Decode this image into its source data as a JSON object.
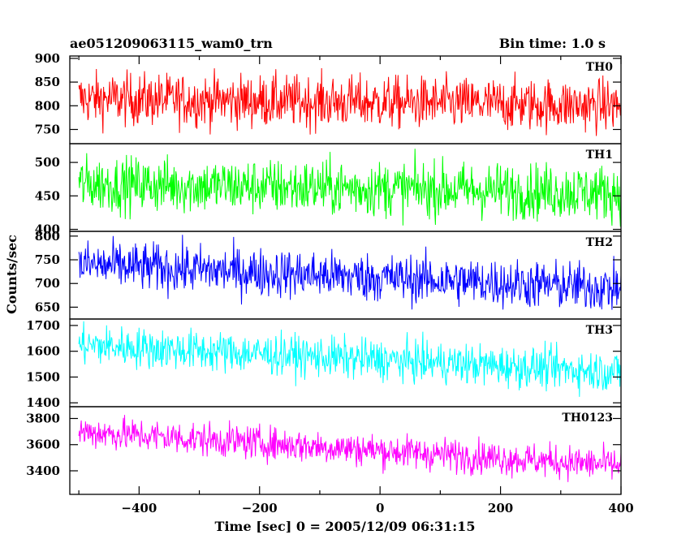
{
  "header": {
    "left": "ae051209063115_wam0_trn",
    "right": "Bin time: 1.0 s"
  },
  "chart_data": {
    "type": "line",
    "xlabel": "Time [sec] 0 = 2005/12/09 06:31:15",
    "ylabel": "Counts/sec",
    "xlim": [
      -515,
      400
    ],
    "xticks": [
      -400,
      -200,
      0,
      200,
      400
    ],
    "x": {
      "start": -500,
      "end": 400,
      "step": 1
    },
    "panels": [
      {
        "name": "TH0",
        "color": "#ff0000",
        "ylim": [
          720,
          905
        ],
        "yticks": [
          750,
          800,
          850,
          900
        ],
        "mean_start": 815,
        "mean_end": 800,
        "noise": 28
      },
      {
        "name": "TH1",
        "color": "#00ff00",
        "ylim": [
          397,
          528
        ],
        "yticks": [
          400,
          450,
          500
        ],
        "mean_start": 468,
        "mean_end": 455,
        "noise": 21
      },
      {
        "name": "TH2",
        "color": "#0000ff",
        "ylim": [
          625,
          810
        ],
        "yticks": [
          650,
          700,
          750,
          800
        ],
        "mean_start": 740,
        "mean_end": 690,
        "noise": 26
      },
      {
        "name": "TH3",
        "color": "#00ffff",
        "ylim": [
          1385,
          1725
        ],
        "yticks": [
          1400,
          1500,
          1600,
          1700
        ],
        "mean_start": 1625,
        "mean_end": 1520,
        "noise": 40
      },
      {
        "name": "TH0123",
        "color": "#ff00ff",
        "ylim": [
          3220,
          3890
        ],
        "yticks": [
          3400,
          3600,
          3800
        ],
        "mean_start": 3700,
        "mean_end": 3440,
        "noise": 65
      }
    ]
  }
}
